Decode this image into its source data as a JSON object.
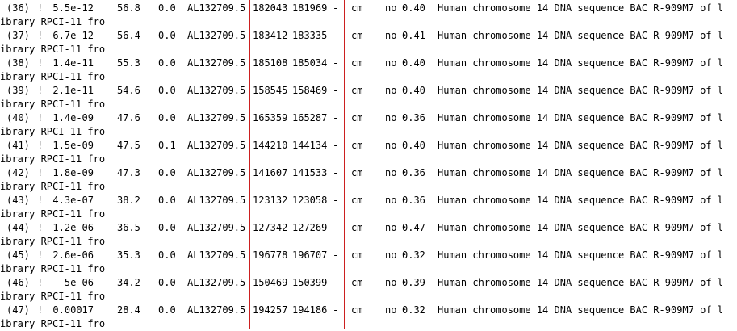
{
  "hits": [
    {
      "num": "(36)",
      "mark": "!",
      "evalue": "5.5e-12",
      "score": "56.8",
      "bias": "0.0",
      "accession": "AL132709.5",
      "from": "182043",
      "to": "181969",
      "strand": "-",
      "rr": "cm",
      "flag": "no",
      "score2": "0.40",
      "desc": "Human chromosome 14 DNA sequence BAC R-909M7 of l",
      "cont": "ibrary RPCI-11 fro"
    },
    {
      "num": "(37)",
      "mark": "!",
      "evalue": "6.7e-12",
      "score": "56.4",
      "bias": "0.0",
      "accession": "AL132709.5",
      "from": "183412",
      "to": "183335",
      "strand": "-",
      "rr": "cm",
      "flag": "no",
      "score2": "0.41",
      "desc": "Human chromosome 14 DNA sequence BAC R-909M7 of l",
      "cont": "ibrary RPCI-11 fro"
    },
    {
      "num": "(38)",
      "mark": "!",
      "evalue": "1.4e-11",
      "score": "55.3",
      "bias": "0.0",
      "accession": "AL132709.5",
      "from": "185108",
      "to": "185034",
      "strand": "-",
      "rr": "cm",
      "flag": "no",
      "score2": "0.40",
      "desc": "Human chromosome 14 DNA sequence BAC R-909M7 of l",
      "cont": "ibrary RPCI-11 fro"
    },
    {
      "num": "(39)",
      "mark": "!",
      "evalue": "2.1e-11",
      "score": "54.6",
      "bias": "0.0",
      "accession": "AL132709.5",
      "from": "158545",
      "to": "158469",
      "strand": "-",
      "rr": "cm",
      "flag": "no",
      "score2": "0.40",
      "desc": "Human chromosome 14 DNA sequence BAC R-909M7 of l",
      "cont": "ibrary RPCI-11 fro"
    },
    {
      "num": "(40)",
      "mark": "!",
      "evalue": "1.4e-09",
      "score": "47.6",
      "bias": "0.0",
      "accession": "AL132709.5",
      "from": "165359",
      "to": "165287",
      "strand": "-",
      "rr": "cm",
      "flag": "no",
      "score2": "0.36",
      "desc": "Human chromosome 14 DNA sequence BAC R-909M7 of l",
      "cont": "ibrary RPCI-11 fro"
    },
    {
      "num": "(41)",
      "mark": "!",
      "evalue": "1.5e-09",
      "score": "47.5",
      "bias": "0.1",
      "accession": "AL132709.5",
      "from": "144210",
      "to": "144134",
      "strand": "-",
      "rr": "cm",
      "flag": "no",
      "score2": "0.40",
      "desc": "Human chromosome 14 DNA sequence BAC R-909M7 of l",
      "cont": "ibrary RPCI-11 fro"
    },
    {
      "num": "(42)",
      "mark": "!",
      "evalue": "1.8e-09",
      "score": "47.3",
      "bias": "0.0",
      "accession": "AL132709.5",
      "from": "141607",
      "to": "141533",
      "strand": "-",
      "rr": "cm",
      "flag": "no",
      "score2": "0.36",
      "desc": "Human chromosome 14 DNA sequence BAC R-909M7 of l",
      "cont": "ibrary RPCI-11 fro"
    },
    {
      "num": "(43)",
      "mark": "!",
      "evalue": "4.3e-07",
      "score": "38.2",
      "bias": "0.0",
      "accession": "AL132709.5",
      "from": "123132",
      "to": "123058",
      "strand": "-",
      "rr": "cm",
      "flag": "no",
      "score2": "0.36",
      "desc": "Human chromosome 14 DNA sequence BAC R-909M7 of l",
      "cont": "ibrary RPCI-11 fro"
    },
    {
      "num": "(44)",
      "mark": "!",
      "evalue": "1.2e-06",
      "score": "36.5",
      "bias": "0.0",
      "accession": "AL132709.5",
      "from": "127342",
      "to": "127269",
      "strand": "-",
      "rr": "cm",
      "flag": "no",
      "score2": "0.47",
      "desc": "Human chromosome 14 DNA sequence BAC R-909M7 of l",
      "cont": "ibrary RPCI-11 fro"
    },
    {
      "num": "(45)",
      "mark": "!",
      "evalue": "2.6e-06",
      "score": "35.3",
      "bias": "0.0",
      "accession": "AL132709.5",
      "from": "196778",
      "to": "196707",
      "strand": "-",
      "rr": "cm",
      "flag": "no",
      "score2": "0.32",
      "desc": "Human chromosome 14 DNA sequence BAC R-909M7 of l",
      "cont": "ibrary RPCI-11 fro"
    },
    {
      "num": "(46)",
      "mark": "!",
      "evalue": "5e-06",
      "score": "34.2",
      "bias": "0.0",
      "accession": "AL132709.5",
      "from": "150469",
      "to": "150399",
      "strand": "-",
      "rr": "cm",
      "flag": "no",
      "score2": "0.39",
      "desc": "Human chromosome 14 DNA sequence BAC R-909M7 of l",
      "cont": "ibrary RPCI-11 fro"
    },
    {
      "num": "(47)",
      "mark": "!",
      "evalue": "0.00017",
      "score": "28.4",
      "bias": "0.0",
      "accession": "AL132709.5",
      "from": "194257",
      "to": "194186",
      "strand": "-",
      "rr": "cm",
      "flag": "no",
      "score2": "0.32",
      "desc": "Human chromosome 14 DNA sequence BAC R-909M7 of l",
      "cont": "ibrary RPCI-11 fro"
    }
  ],
  "colors": {
    "text": "#000000",
    "background": "#ffffff",
    "divider": "#cc1f1f"
  }
}
